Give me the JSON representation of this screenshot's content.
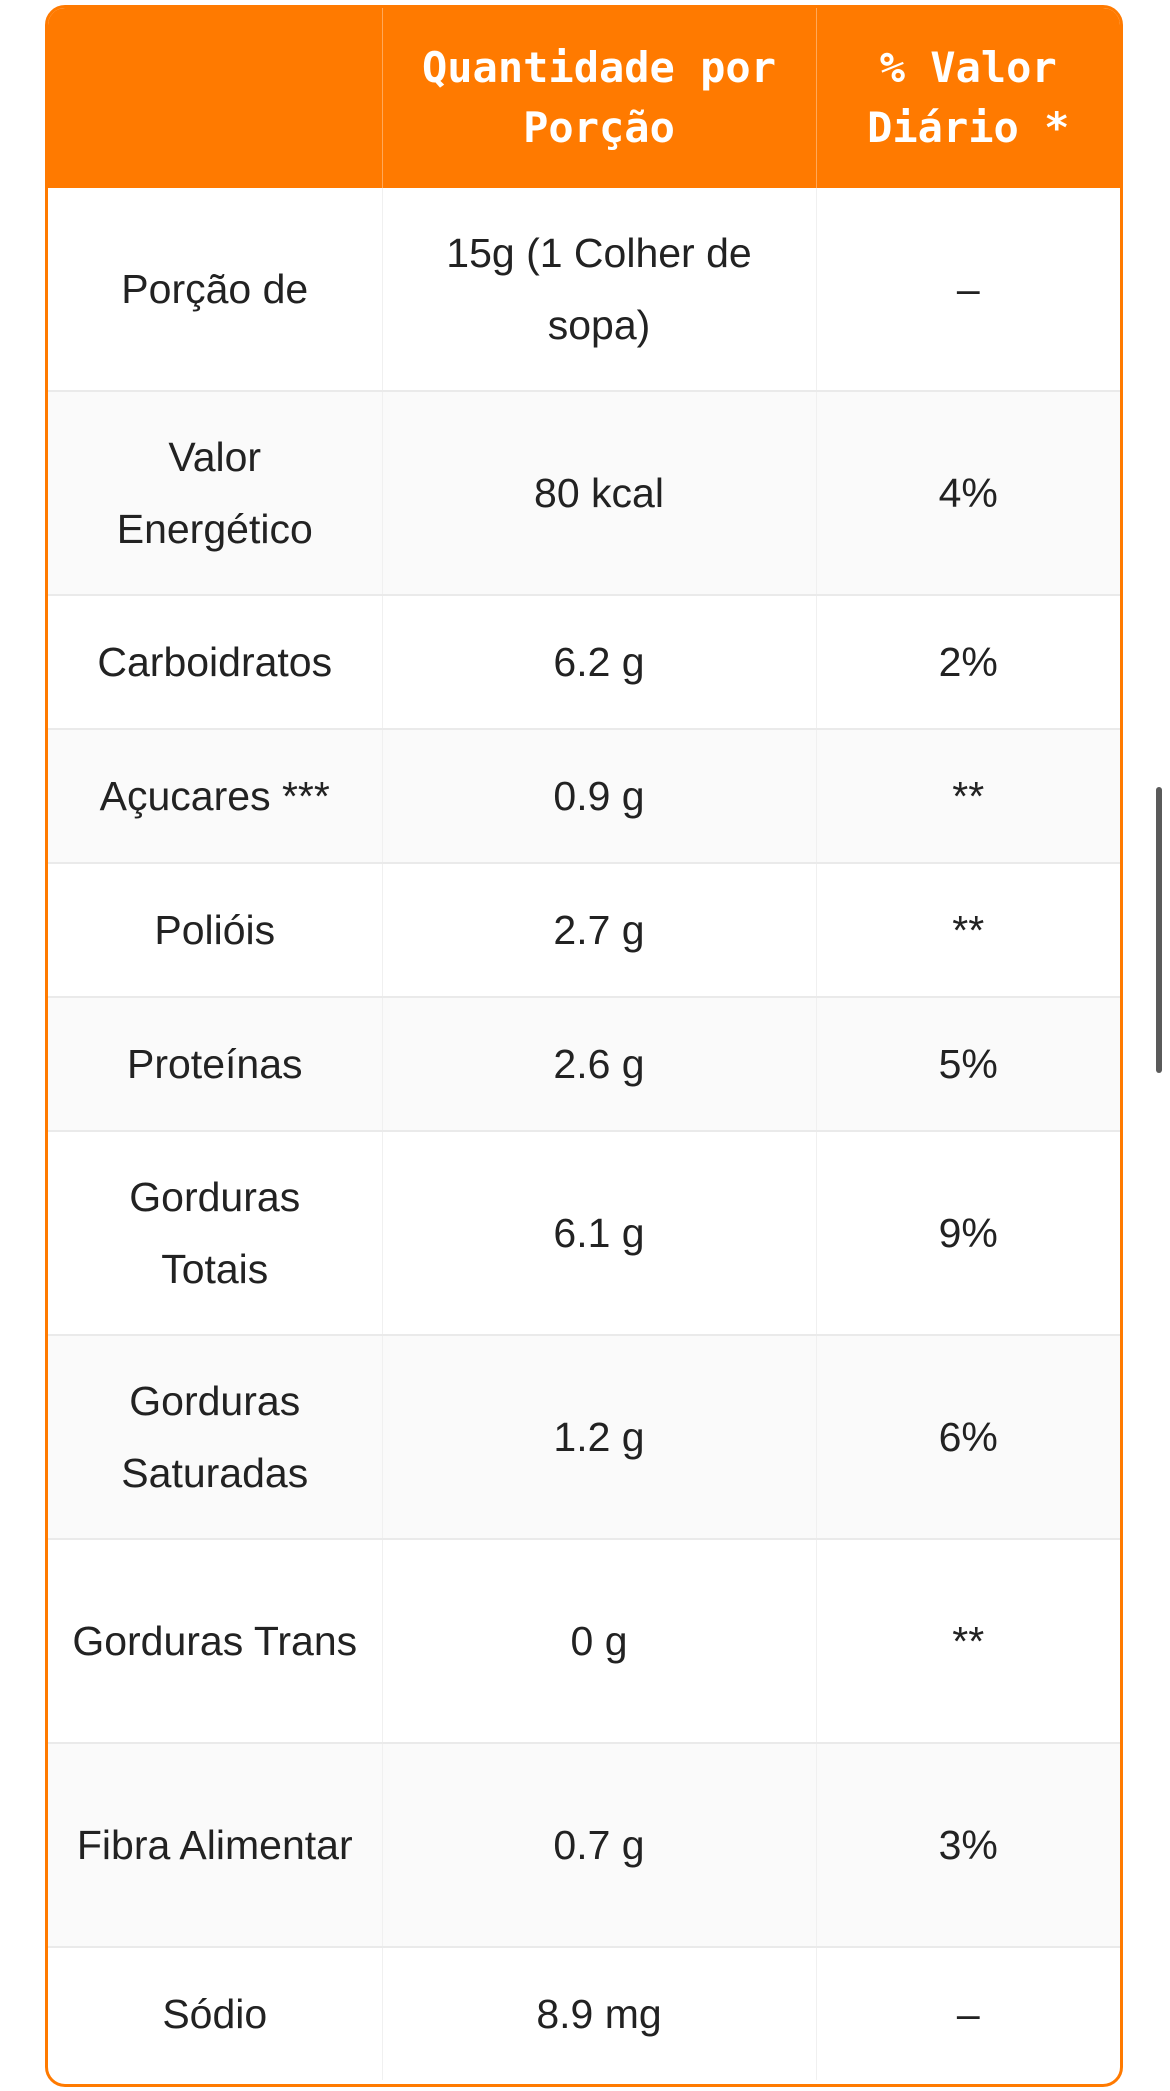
{
  "table": {
    "headers": [
      "",
      "Quantidade por Porção",
      "% Valor Diário *"
    ],
    "rows": [
      {
        "nutrient": "Porção de",
        "amount": "15g (1 Colher de sopa)",
        "dv": "–"
      },
      {
        "nutrient": "Valor Energético",
        "amount": "80 kcal",
        "dv": "4%"
      },
      {
        "nutrient": "Carboidratos",
        "amount": "6.2 g",
        "dv": "2%"
      },
      {
        "nutrient": "Açucares ***",
        "amount": "0.9 g",
        "dv": "**"
      },
      {
        "nutrient": "Polióis",
        "amount": "2.7 g",
        "dv": "**"
      },
      {
        "nutrient": "Proteínas",
        "amount": "2.6 g",
        "dv": "5%"
      },
      {
        "nutrient": "Gorduras Totais",
        "amount": "6.1 g",
        "dv": "9%"
      },
      {
        "nutrient": "Gorduras Saturadas",
        "amount": "1.2 g",
        "dv": "6%"
      },
      {
        "nutrient": "Gorduras Trans",
        "amount": "0 g",
        "dv": "**"
      },
      {
        "nutrient": "Fibra Alimentar",
        "amount": "0.7 g",
        "dv": "3%"
      },
      {
        "nutrient": "Sódio",
        "amount": "8.9 mg",
        "dv": "–"
      }
    ]
  },
  "colors": {
    "accent": "#FF7A00",
    "header_text": "#FFFFFF",
    "body_text": "#222222"
  }
}
